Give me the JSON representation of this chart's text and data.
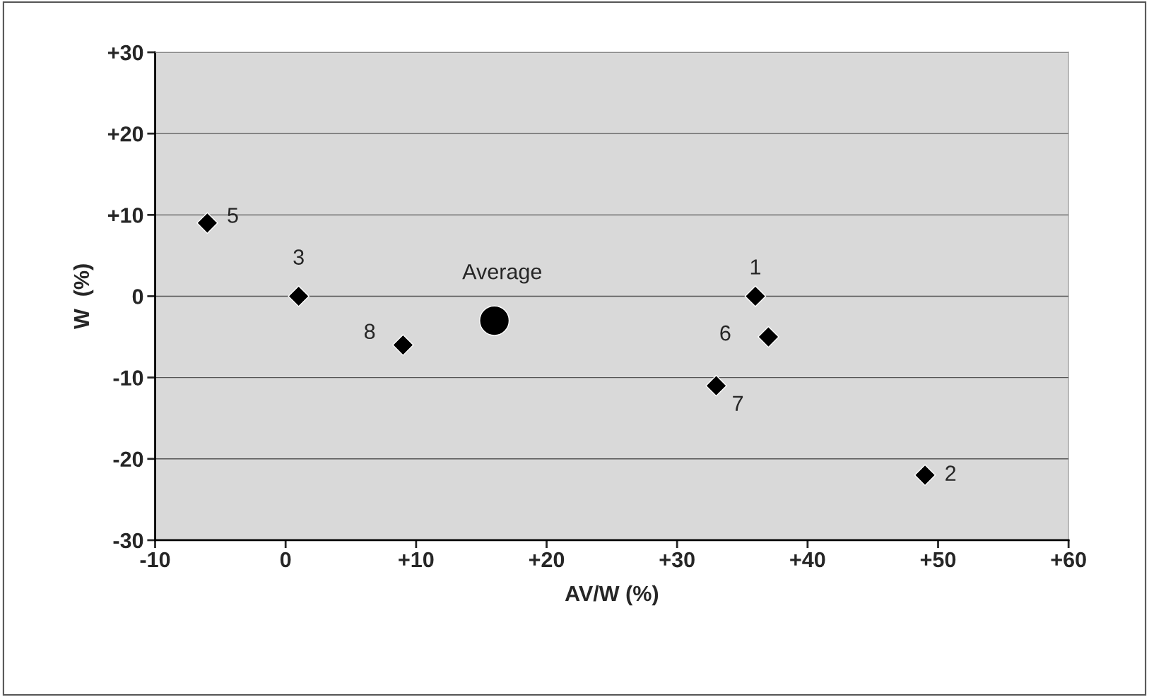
{
  "chart_data": {
    "type": "scatter",
    "xlabel": "AV/W (%)",
    "ylabel": "W  (%)",
    "series": [
      {
        "color": "#000000",
        "marker": "diamond",
        "x": [
          36,
          49,
          1,
          -6,
          37,
          33,
          9
        ],
        "values": [
          0,
          -22,
          0,
          9,
          -5,
          -11,
          -6
        ]
      },
      {
        "color": "#000000",
        "marker": "circle",
        "x": [
          16
        ],
        "values": [
          -3
        ]
      }
    ],
    "annotations": [
      {
        "text": "1",
        "x": 36,
        "y": 0
      },
      {
        "text": "2",
        "x": 49,
        "y": -22
      },
      {
        "text": "3",
        "x": 1,
        "y": 0
      },
      {
        "text": "5",
        "x": -6,
        "y": 9
      },
      {
        "text": "6",
        "x": 37,
        "y": -5
      },
      {
        "text": "7",
        "x": 33,
        "y": -11
      },
      {
        "text": "8",
        "x": 9,
        "y": -6
      },
      {
        "text": "Average",
        "x": 16,
        "y": -3
      }
    ],
    "xlim": [
      -10,
      60
    ],
    "xticks": [
      -10,
      0,
      {
        "value": 10,
        "label": "+10"
      },
      {
        "value": 20,
        "label": "+20"
      },
      {
        "value": 30,
        "label": "+30"
      },
      {
        "value": 40,
        "label": "+40"
      },
      {
        "value": 50,
        "label": "+50"
      },
      {
        "value": 60,
        "label": "+60"
      }
    ],
    "ylim": [
      -30,
      30
    ],
    "yticks": [
      -30,
      -20,
      -10,
      0,
      {
        "value": 10,
        "label": "+10"
      },
      {
        "value": 20,
        "label": "+20"
      },
      {
        "value": 30,
        "label": "+30"
      }
    ],
    "grid": "y",
    "legend": false
  }
}
